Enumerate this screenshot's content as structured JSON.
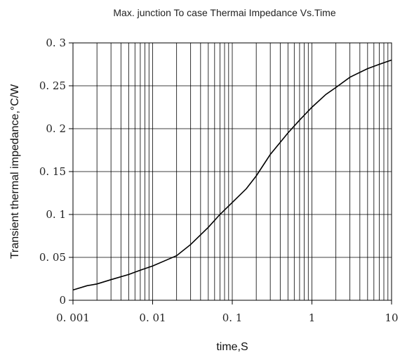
{
  "chart_data": {
    "type": "line",
    "title": "Max. junction To case Thermai Impedance Vs.Time",
    "xlabel": "time,S",
    "ylabel": "Transient thermal impedance,°C/W",
    "x_scale": "log",
    "xlim": [
      0.001,
      10
    ],
    "ylim": [
      0,
      0.3
    ],
    "x_ticks": [
      0.001,
      0.01,
      0.1,
      1,
      10
    ],
    "x_tick_labels": [
      "0. 001",
      "0. 01",
      "0. 1",
      "1",
      "10"
    ],
    "y_ticks": [
      0,
      0.05,
      0.1,
      0.15,
      0.2,
      0.25,
      0.3
    ],
    "y_tick_labels": [
      "0",
      "0. 05",
      "0. 1",
      "0. 15",
      "0. 2",
      "0. 25",
      "0. 3"
    ],
    "grid": "vertical log grid and horizontal major grid",
    "line_color": "#000000",
    "grid_color": "#000000",
    "series": [
      {
        "x": [
          0.001,
          0.0015,
          0.002,
          0.003,
          0.005,
          0.007,
          0.01,
          0.015,
          0.02,
          0.03,
          0.05,
          0.07,
          0.1,
          0.15,
          0.2,
          0.3,
          0.5,
          0.7,
          1,
          1.5,
          2,
          3,
          5,
          7,
          10
        ],
        "y": [
          0.012,
          0.017,
          0.019,
          0.024,
          0.03,
          0.035,
          0.04,
          0.047,
          0.052,
          0.065,
          0.085,
          0.1,
          0.114,
          0.13,
          0.145,
          0.17,
          0.195,
          0.21,
          0.225,
          0.24,
          0.248,
          0.26,
          0.27,
          0.275,
          0.28
        ]
      }
    ]
  }
}
